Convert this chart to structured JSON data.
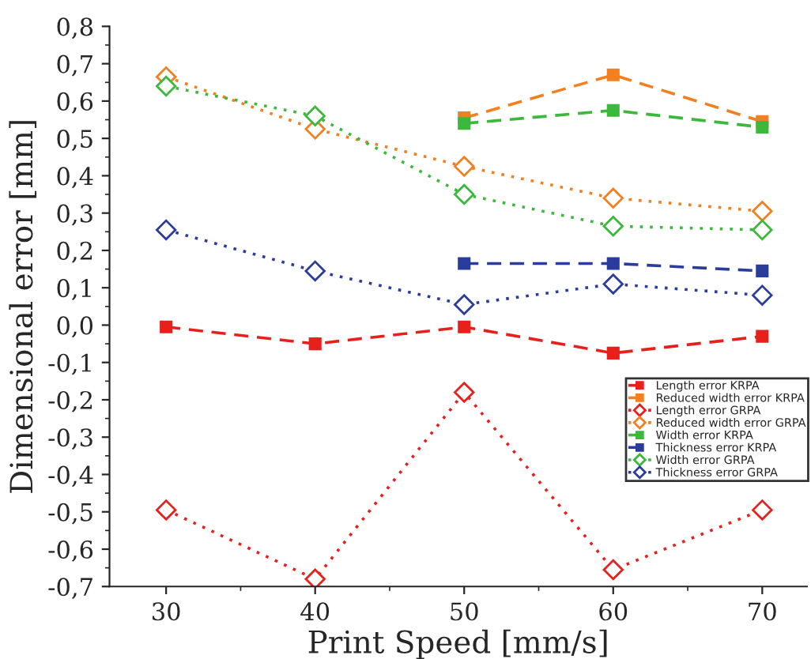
{
  "chart_data": {
    "type": "line",
    "xlabel": "Print Speed [mm/s]",
    "ylabel": "Dimensional error [mm]",
    "x": [
      30,
      40,
      50,
      60,
      70
    ],
    "xlim": [
      26.2,
      73
    ],
    "xticks": [
      30,
      40,
      50,
      60,
      70
    ],
    "ylim": [
      -0.7,
      0.8
    ],
    "yticks": [
      {
        "value": -0.7,
        "label": "-0,7"
      },
      {
        "value": -0.6,
        "label": "-0,6"
      },
      {
        "value": -0.5,
        "label": "-0,5"
      },
      {
        "value": -0.4,
        "label": "-0,4"
      },
      {
        "value": -0.3,
        "label": "-0,3"
      },
      {
        "value": -0.2,
        "label": "-0,2"
      },
      {
        "value": -0.1,
        "label": "-0,1"
      },
      {
        "value": 0.0,
        "label": "0,0"
      },
      {
        "value": 0.1,
        "label": "0,1"
      },
      {
        "value": 0.2,
        "label": "0,2"
      },
      {
        "value": 0.3,
        "label": "0,3"
      },
      {
        "value": 0.4,
        "label": "0,4"
      },
      {
        "value": 0.5,
        "label": "0,5"
      },
      {
        "value": 0.6,
        "label": "0,6"
      },
      {
        "value": 0.7,
        "label": "0,7"
      },
      {
        "value": 0.8,
        "label": "0,8"
      }
    ],
    "grid": false,
    "legend": "right",
    "series": [
      {
        "name": "Length error KRPA",
        "color": "#e8201c",
        "marker": "square",
        "line_style": "dashed",
        "values": [
          -0.005,
          -0.05,
          -0.005,
          -0.075,
          -0.03
        ]
      },
      {
        "name": "Reduced width error KRPA",
        "color": "#f28020",
        "marker": "square",
        "line_style": "dashed",
        "values": [
          null,
          null,
          0.555,
          0.67,
          0.545
        ]
      },
      {
        "name": "Length error GRPA",
        "color": "#e8201c",
        "marker": "diamond",
        "line_style": "dotted",
        "values": [
          -0.495,
          -0.68,
          -0.18,
          -0.655,
          -0.495
        ]
      },
      {
        "name": "Reduced width error GRPA",
        "color": "#f28020",
        "marker": "diamond",
        "line_style": "dotted",
        "values": [
          0.665,
          0.525,
          0.425,
          0.34,
          0.305
        ]
      },
      {
        "name": "Width error KRPA",
        "color": "#3cb83c",
        "marker": "square",
        "line_style": "dashed",
        "values": [
          null,
          null,
          0.54,
          0.575,
          0.53
        ]
      },
      {
        "name": "Thickness error KRPA",
        "color": "#2a3c9c",
        "marker": "square",
        "line_style": "dashed",
        "values": [
          null,
          null,
          0.165,
          0.165,
          0.145
        ]
      },
      {
        "name": "Width error GRPA",
        "color": "#3cb83c",
        "marker": "diamond",
        "line_style": "dotted",
        "values": [
          0.64,
          0.56,
          0.35,
          0.265,
          0.255
        ]
      },
      {
        "name": "Thickness error GRPA",
        "color": "#2a3c9c",
        "marker": "diamond",
        "line_style": "dotted",
        "values": [
          0.255,
          0.145,
          0.055,
          0.11,
          0.08
        ]
      }
    ]
  }
}
